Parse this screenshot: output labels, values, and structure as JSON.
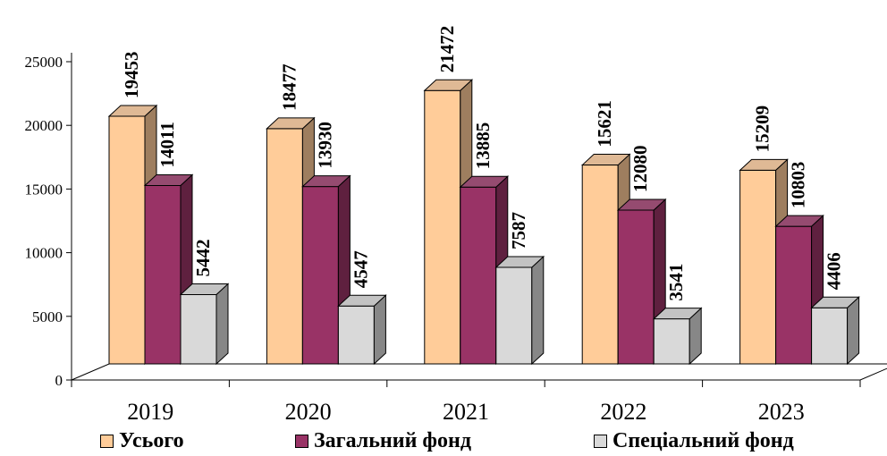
{
  "chart_data": {
    "type": "bar",
    "subtype": "3d-clustered-column",
    "categories": [
      "2019",
      "2020",
      "2021",
      "2022",
      "2023"
    ],
    "series": [
      {
        "name": "Усього",
        "values": [
          19453,
          18477,
          21472,
          15621,
          15209
        ],
        "color": "#FFCC99"
      },
      {
        "name": "Загальний фонд",
        "values": [
          14011,
          13930,
          13885,
          12080,
          10803
        ],
        "color": "#993366"
      },
      {
        "name": "Спеціальний фонд",
        "values": [
          5442,
          4547,
          7587,
          3541,
          4406
        ],
        "color": "#D9D9D9"
      }
    ],
    "ylim": [
      0,
      25000
    ],
    "yticks": [
      0,
      5000,
      10000,
      15000,
      20000,
      25000
    ],
    "data_labels": true,
    "legend_position": "bottom",
    "grid": false
  }
}
